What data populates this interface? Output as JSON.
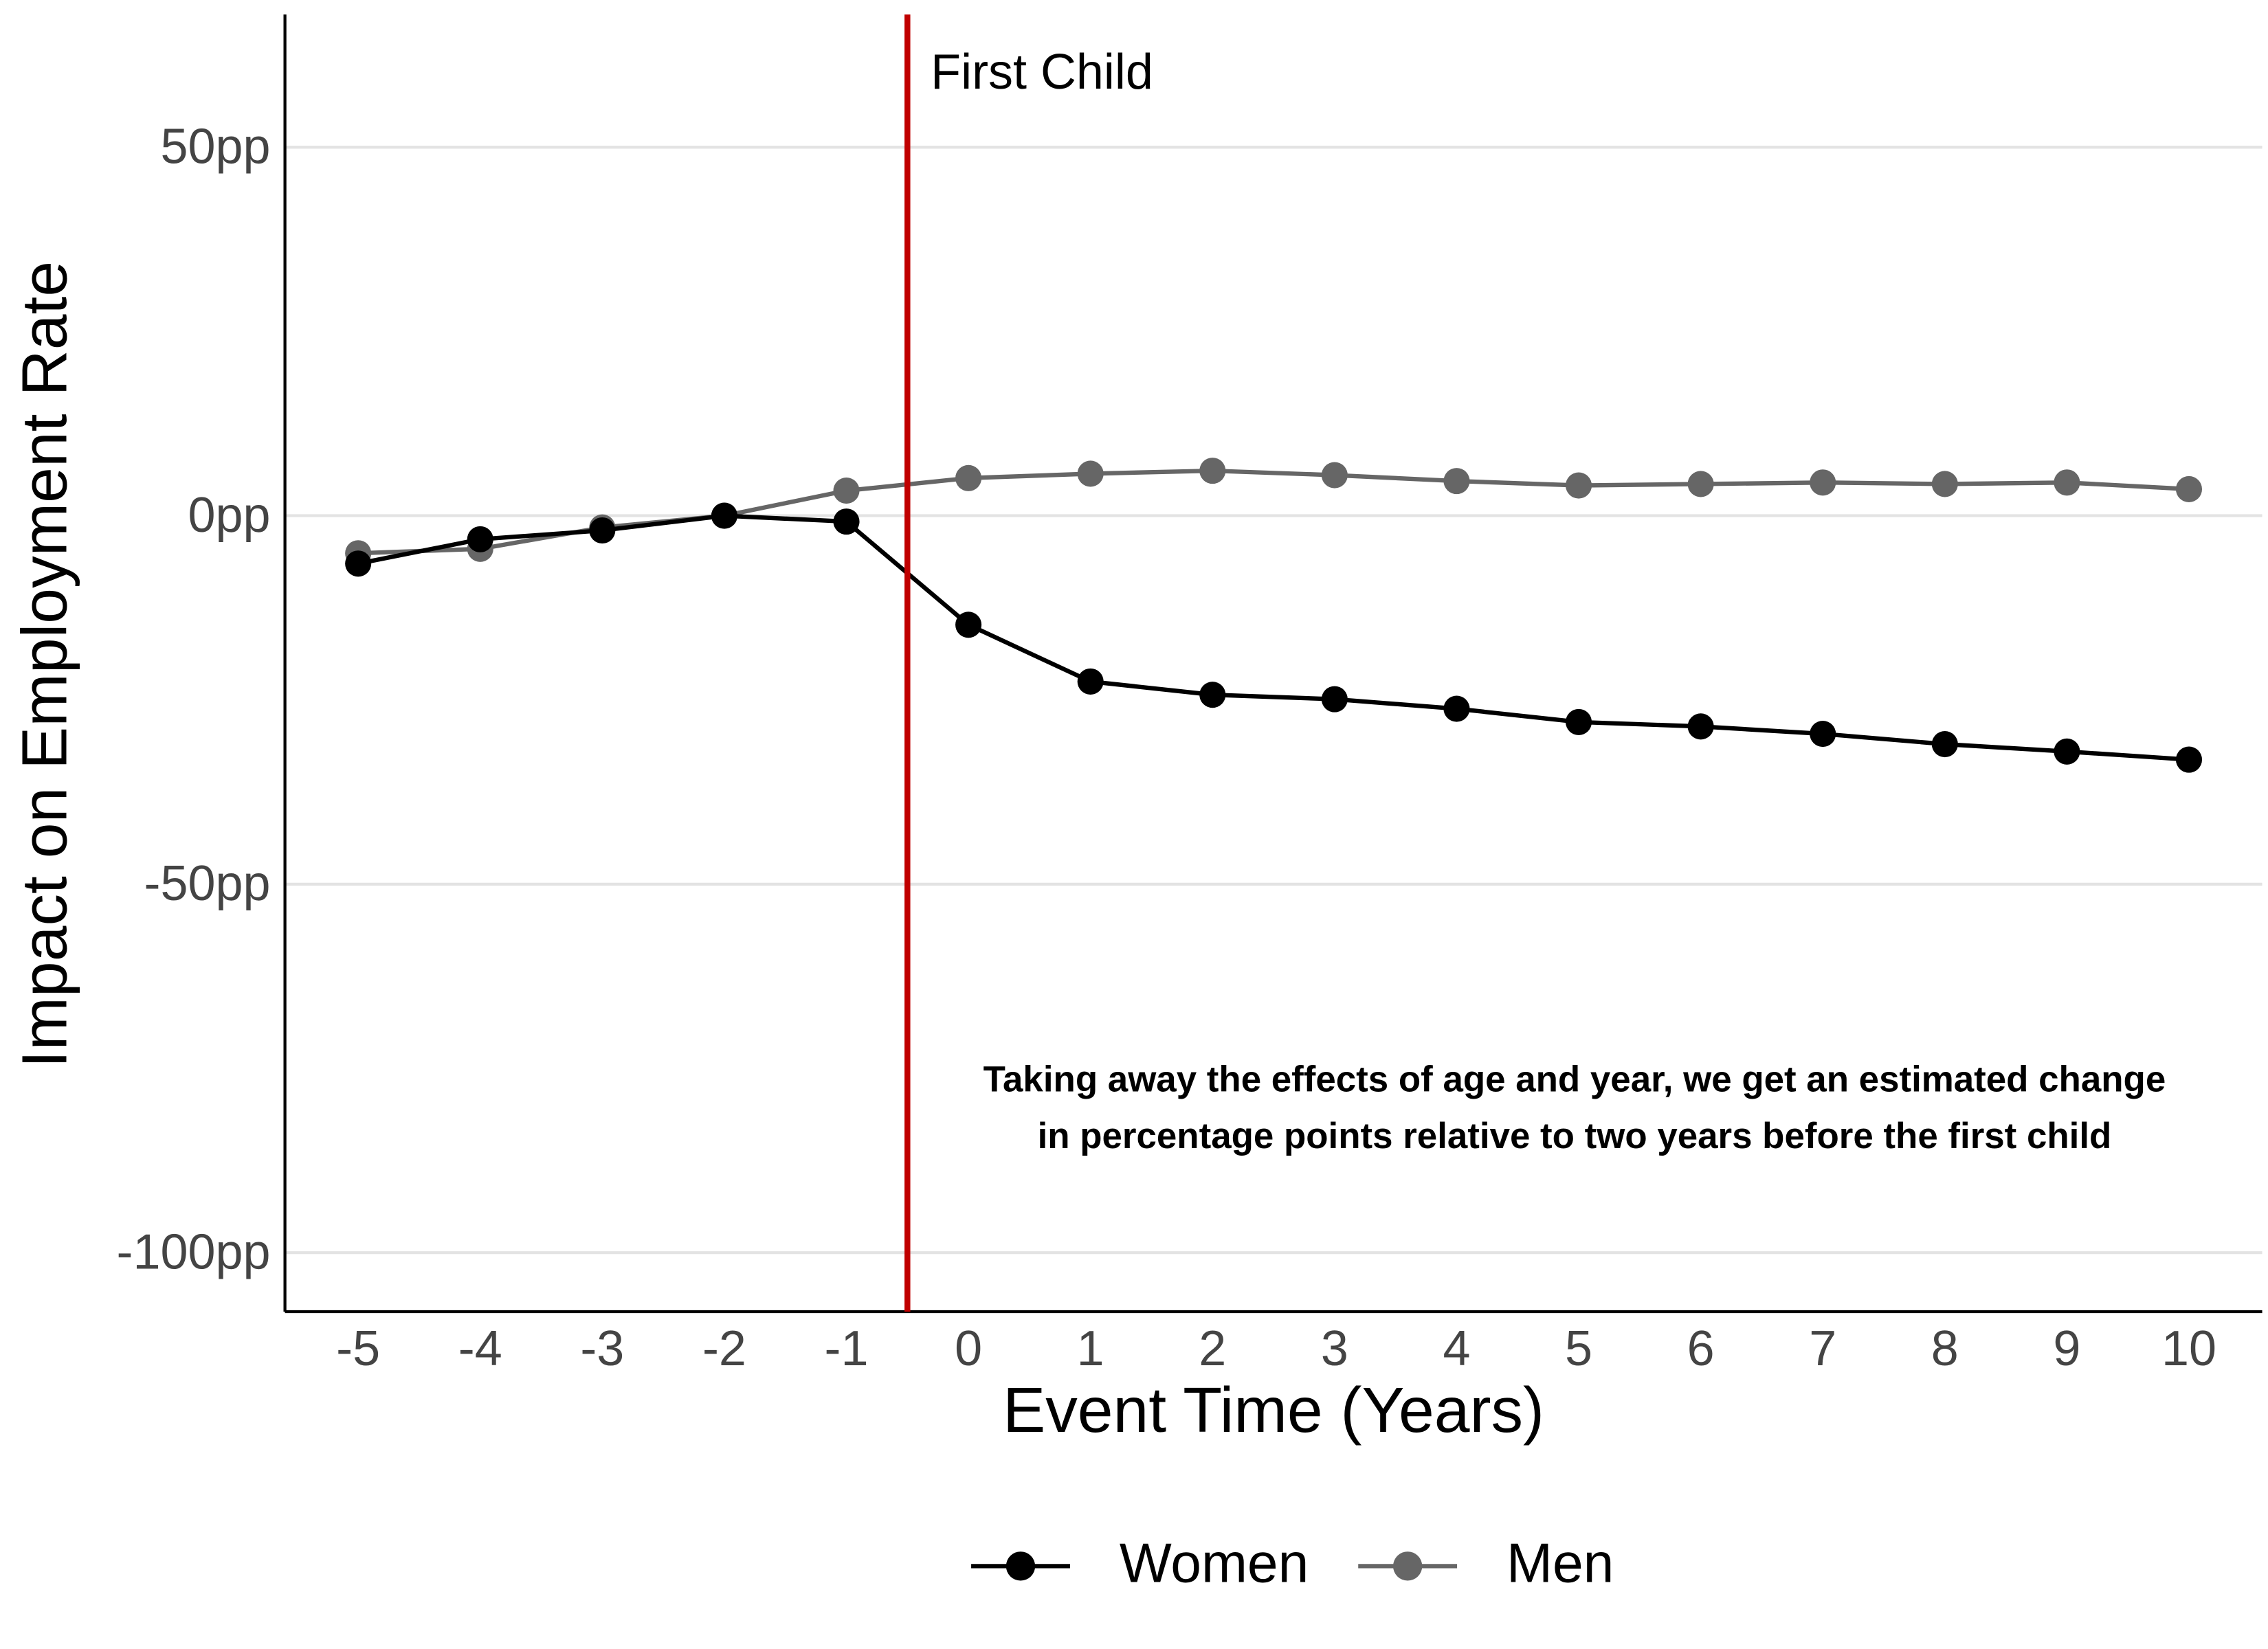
{
  "chart_data": {
    "type": "line",
    "x_label": "Event Time (Years)",
    "y_label": "Impact on Employment Rate",
    "x": [
      -5,
      -4,
      -3,
      -2,
      -1,
      0,
      1,
      2,
      3,
      4,
      5,
      6,
      7,
      8,
      9,
      10
    ],
    "series": [
      {
        "name": "Women",
        "color": "#000000",
        "values": [
          -6.5,
          -3.2,
          -2,
          0,
          -0.8,
          -14.8,
          -22.5,
          -24.3,
          -24.9,
          -26.2,
          -28,
          -28.6,
          -29.6,
          -31,
          -32,
          -33.1
        ]
      },
      {
        "name": "Men",
        "color": "#666666",
        "values": [
          -5.1,
          -4.5,
          -1.6,
          0,
          3.4,
          5.1,
          5.7,
          6.1,
          5.5,
          4.7,
          4.1,
          4.3,
          4.5,
          4.3,
          4.5,
          3.6
        ]
      }
    ],
    "xlim": [
      -5.6,
      10.6
    ],
    "ylim": [
      -108,
      68
    ],
    "xticks": [
      -5,
      -4,
      -3,
      -2,
      -1,
      0,
      1,
      2,
      3,
      4,
      5,
      6,
      7,
      8,
      9,
      10
    ],
    "yticks": [
      {
        "value": -100,
        "label": "-100pp"
      },
      {
        "value": -50,
        "label": "-50pp"
      },
      {
        "value": 0,
        "label": "0pp"
      },
      {
        "value": 50,
        "label": "50pp"
      }
    ],
    "grid": true,
    "legend": "bottom",
    "event_line": {
      "x": -0.5,
      "label": "First Child",
      "color": "#c00000"
    },
    "note": [
      "Taking away the effects of age and year, we get an estimated change",
      "in percentage points relative to two years before the first child"
    ]
  }
}
